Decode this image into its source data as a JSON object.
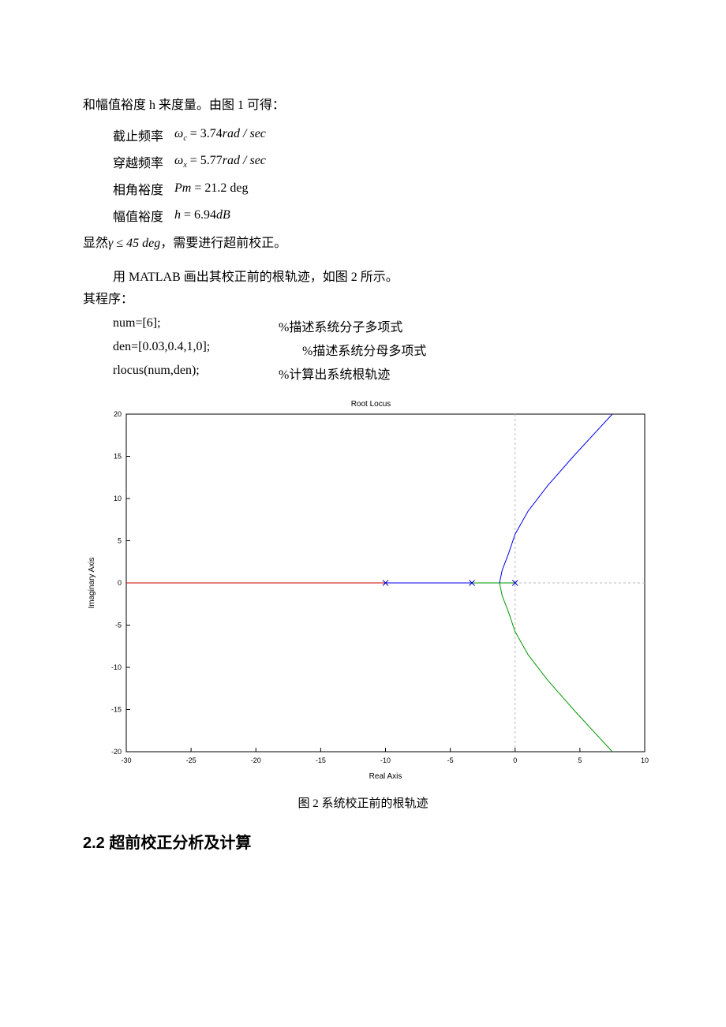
{
  "intro_line": "和幅值裕度 h 来度量。由图 1 可得：",
  "params": [
    {
      "label": "截止频率",
      "sym": "ω",
      "sub": "c",
      "val": "= 3.74",
      "unit": "rad / sec"
    },
    {
      "label": "穿越频率",
      "sym": "ω",
      "sub": "x",
      "val": "= 5.77",
      "unit": "rad / sec"
    },
    {
      "label": "相角裕度",
      "sym": "Pm",
      "sub": "",
      "val": "= 21.2",
      "unit": "deg"
    },
    {
      "label": "幅值裕度",
      "sym": "h",
      "sub": "",
      "val": "= 6.94",
      "unit": "dB"
    }
  ],
  "cond_prefix": "显然",
  "cond_formula": "γ ≤ 45 deg",
  "cond_suffix": "，需要进行超前校正。",
  "para2a": "用 MATLAB 画出其校正前的根轨迹，如图 2 所示。",
  "para2b": "其程序：",
  "code": [
    {
      "l": "num=[6];",
      "r": "%描述系统分子多项式"
    },
    {
      "l": "den=[0.03,0.4,1,0];",
      "r": "%描述系统分母多项式"
    },
    {
      "l": "rlocus(num,den);",
      "r": "%计算出系统根轨迹"
    }
  ],
  "chart": {
    "type": "root-locus",
    "title": "Root Locus",
    "title_fontsize": 10,
    "xlabel": "Real Axis",
    "ylabel": "Imaginary Axis",
    "label_fontsize": 10,
    "tick_fontsize": 9,
    "xlim": [
      -30,
      10
    ],
    "ylim": [
      -20,
      20
    ],
    "xticks": [
      -30,
      -25,
      -20,
      -15,
      -10,
      -5,
      0,
      5,
      10
    ],
    "yticks": [
      -20,
      -15,
      -10,
      -5,
      0,
      5,
      10,
      15,
      20
    ],
    "background_color": "#ffffff",
    "axis_box_color": "#000000",
    "grid_dash_color": "#b8b8b8",
    "tick_color": "#000000",
    "pole_color": "#0000cc",
    "pole_marker": "x",
    "poles": [
      [
        -10,
        0
      ],
      [
        -3.33,
        0
      ],
      [
        0,
        0
      ]
    ],
    "series": [
      {
        "name": "real-branch",
        "color": "#cc0000",
        "width": 1,
        "points": [
          [
            -30,
            0
          ],
          [
            -10,
            0
          ]
        ]
      },
      {
        "name": "real-branch-2a",
        "color": "#0000ee",
        "width": 1,
        "points": [
          [
            -10,
            0
          ],
          [
            -3.33,
            0
          ]
        ]
      },
      {
        "name": "real-branch-2b",
        "color": "#009900",
        "width": 1,
        "points": [
          [
            -3.33,
            0
          ],
          [
            0,
            0
          ]
        ]
      },
      {
        "name": "upper-branch",
        "color": "#0000ee",
        "width": 1,
        "points": [
          [
            -1.2,
            0
          ],
          [
            -1.0,
            1.5
          ],
          [
            -0.5,
            3.5
          ],
          [
            0,
            5.77
          ],
          [
            1,
            8.5
          ],
          [
            2.5,
            11.5
          ],
          [
            4.5,
            15
          ],
          [
            7.5,
            20
          ]
        ]
      },
      {
        "name": "lower-branch",
        "color": "#009900",
        "width": 1,
        "points": [
          [
            -1.2,
            0
          ],
          [
            -1.0,
            -1.5
          ],
          [
            -0.5,
            -3.5
          ],
          [
            0,
            -5.77
          ],
          [
            1,
            -8.5
          ],
          [
            2.5,
            -11.5
          ],
          [
            4.5,
            -15
          ],
          [
            7.5,
            -20
          ]
        ]
      }
    ],
    "crosshair_x": 0,
    "crosshair_y": 0
  },
  "caption": "图 2 系统校正前的根轨迹",
  "section_heading": "2.2 超前校正分析及计算"
}
